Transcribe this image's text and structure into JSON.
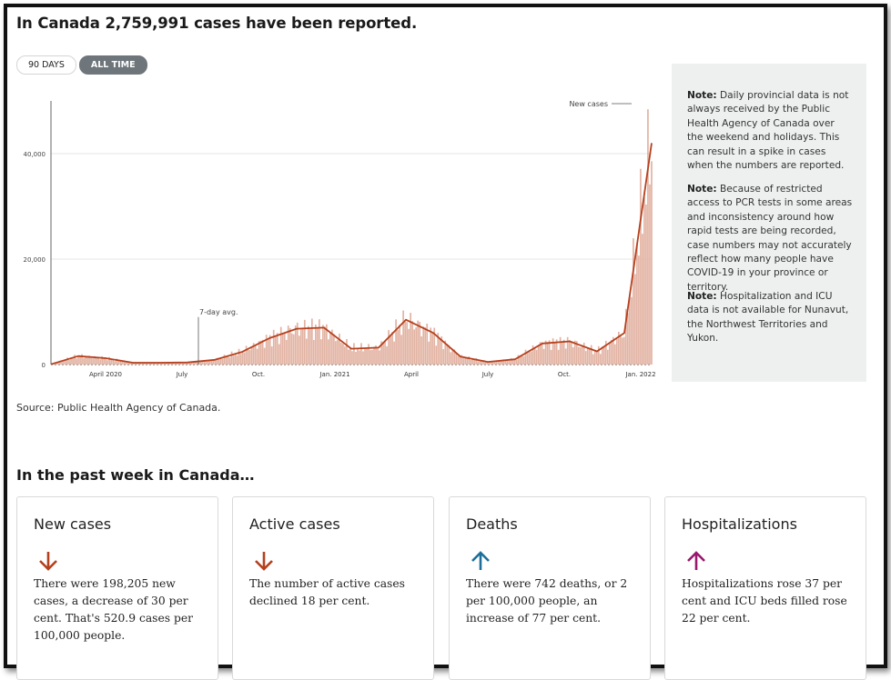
{
  "headline": "In Canada 2,759,991 cases have been reported.",
  "toggles": [
    {
      "label": "90 DAYS",
      "active": false
    },
    {
      "label": "ALL TIME",
      "active": true
    }
  ],
  "chart_data": {
    "type": "bar",
    "title": "",
    "xlabel": "",
    "ylabel": "",
    "ylim": [
      0,
      50000
    ],
    "y_ticks": [
      "0",
      "20,000",
      "40,000"
    ],
    "x_ticks": [
      "April 2020",
      "July",
      "Oct.",
      "Jan. 2021",
      "April",
      "July",
      "Oct.",
      "Jan. 2022"
    ],
    "annotations": {
      "new_cases": "New cases",
      "avg": "7-day avg."
    },
    "grid": true,
    "colors": {
      "bars": "#e2b3a3",
      "line": "#b5401d"
    },
    "series": [
      {
        "name": "New cases",
        "type": "bar"
      },
      {
        "name": "7-day avg.",
        "type": "line"
      }
    ],
    "x": [
      "2020-03",
      "2020-04",
      "2020-05",
      "2020-06",
      "2020-07",
      "2020-08",
      "2020-09",
      "2020-10",
      "2020-11",
      "2020-12",
      "2021-01",
      "2021-02",
      "2021-03",
      "2021-04",
      "2021-05",
      "2021-06",
      "2021-07",
      "2021-08",
      "2021-09",
      "2021-10",
      "2021-11",
      "2021-12",
      "2022-01"
    ],
    "avg_values": [
      50,
      1600,
      1200,
      350,
      350,
      400,
      900,
      2400,
      5000,
      6800,
      7000,
      3000,
      3200,
      8500,
      6000,
      1500,
      500,
      1000,
      4000,
      4400,
      2500,
      6000,
      42000
    ]
  },
  "source": "Source: Public Health Agency of Canada.",
  "notes": [
    {
      "label": "Note:",
      "text": " Daily provincial data is not always received by the Public Health Agency of Canada over the weekend and holidays. This can result in a spike in cases when the numbers are reported."
    },
    {
      "label": "Note:",
      "text": " Because of restricted access to PCR tests in some areas and inconsistency around how rapid tests are being recorded, case numbers may not accurately reflect how many people have COVID-19 in your province or territory."
    },
    {
      "label": "Note:",
      "text": " Hospitalization and ICU data is not available for Nunavut, the Northwest Territories and Yukon."
    }
  ],
  "section_title": "In the past week in Canada…",
  "cards": [
    {
      "title": "New cases",
      "arrow": "down-arrow-icon",
      "color": "#b5401d",
      "text": "There were 198,205 new cases, a decrease of 30 per cent. That's 520.9 cases per 100,000 people."
    },
    {
      "title": "Active cases",
      "arrow": "down-arrow-icon",
      "color": "#b5401d",
      "text": "The number of active cases declined 18 per cent."
    },
    {
      "title": "Deaths",
      "arrow": "up-arrow-icon",
      "color": "#1d6f9a",
      "text": "There were 742 deaths, or 2 per 100,000 people, an increase of 77 per cent."
    },
    {
      "title": "Hospitalizations",
      "arrow": "up-arrow-icon",
      "color": "#98186e",
      "text": "Hospitalizations rose 37 per cent and ICU beds filled rose 22 per cent."
    }
  ]
}
